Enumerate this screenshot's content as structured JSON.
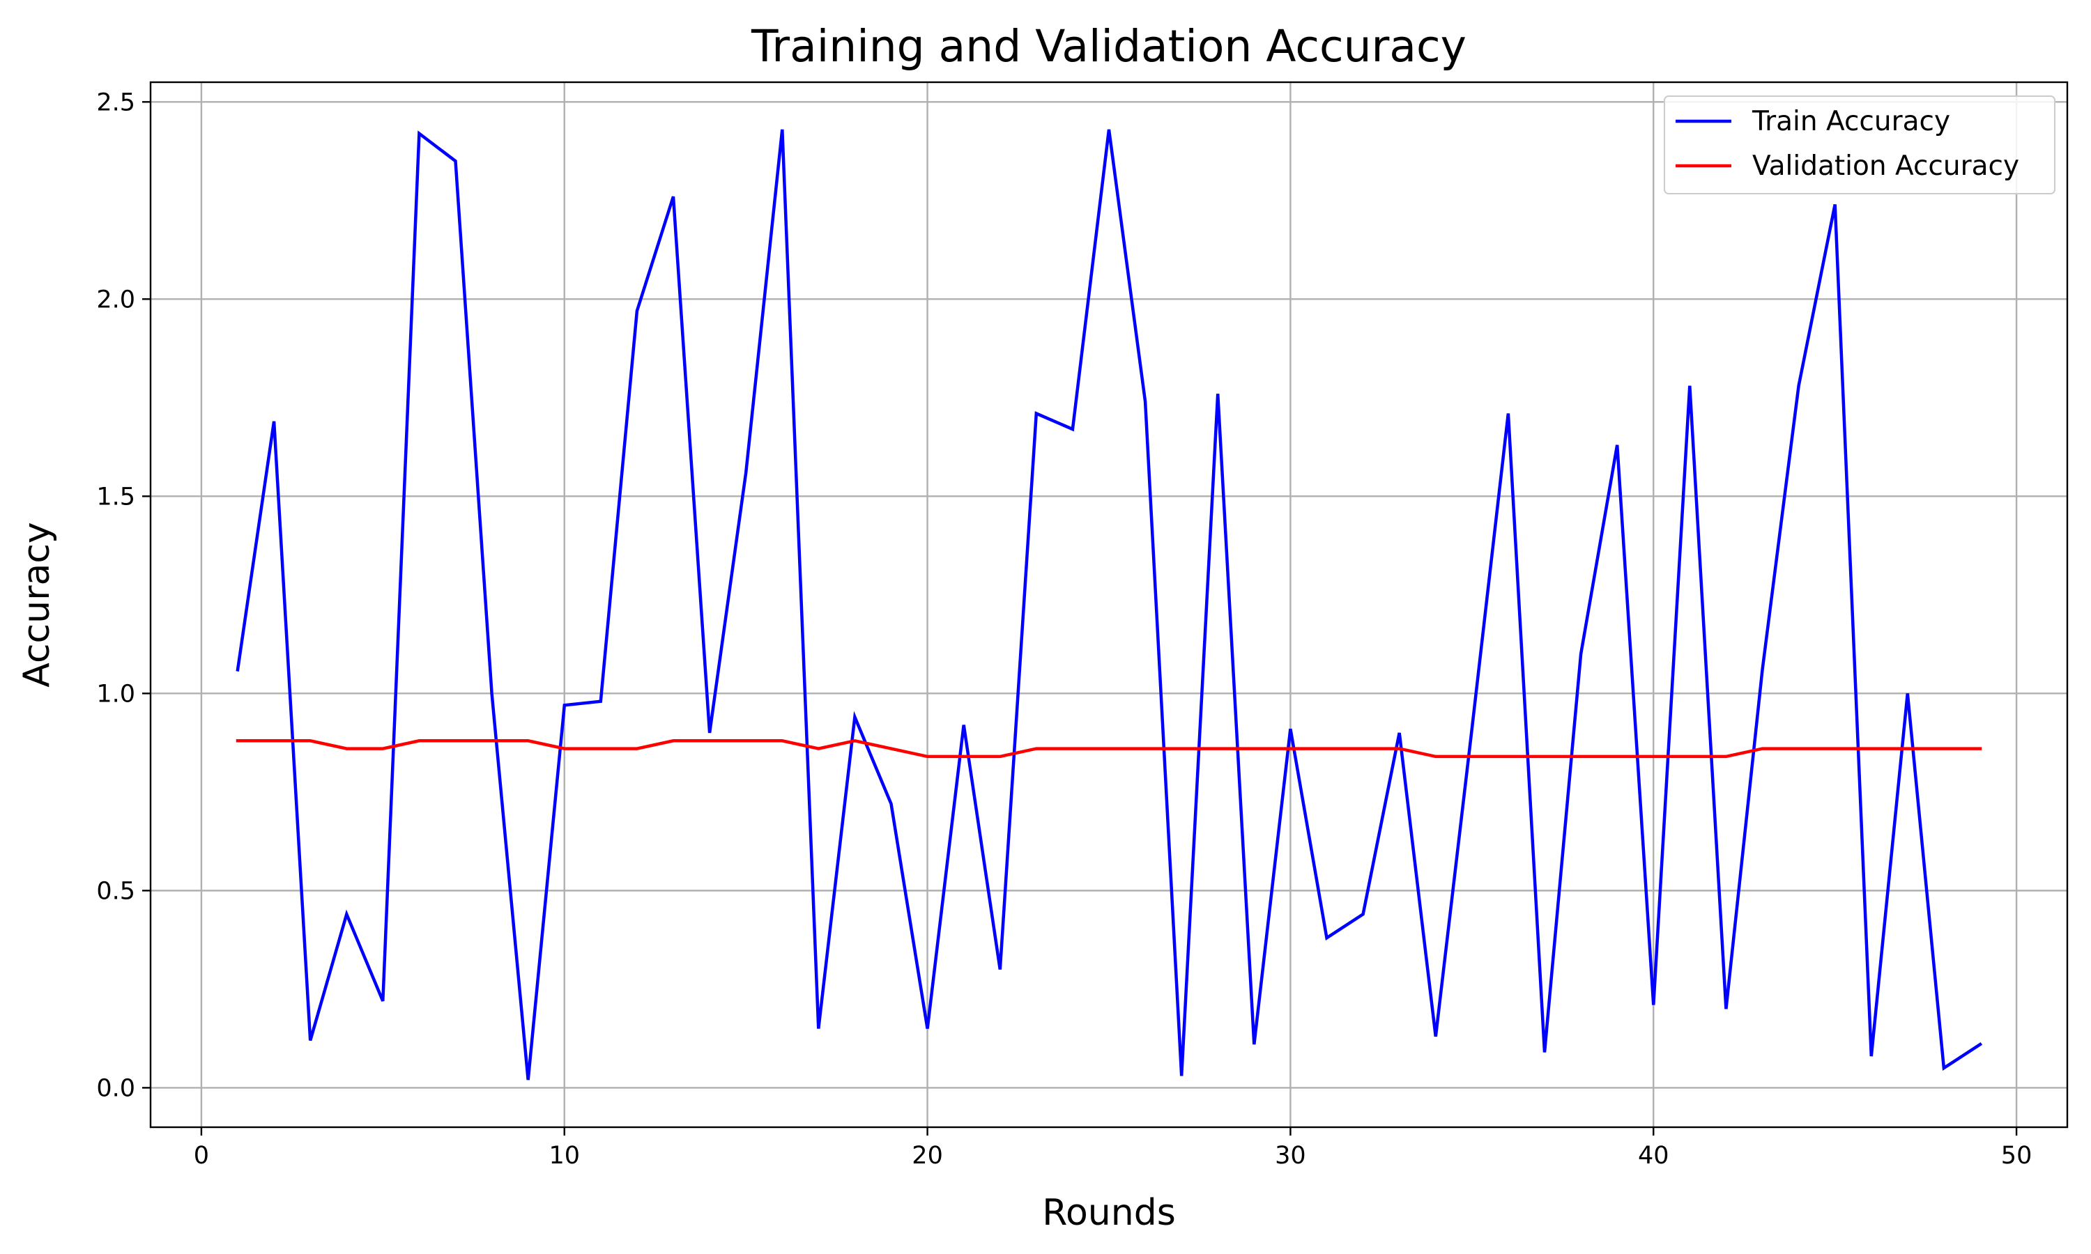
{
  "chart_data": {
    "type": "line",
    "title": "Training and Validation Accuracy",
    "xlabel": "Rounds",
    "ylabel": "Accuracy",
    "xlim": [
      -1.4,
      51.4
    ],
    "ylim": [
      -0.1,
      2.55
    ],
    "x_ticks": [
      0,
      10,
      20,
      30,
      40,
      50
    ],
    "y_ticks": [
      0.0,
      0.5,
      1.0,
      1.5,
      2.0,
      2.5
    ],
    "x_tick_labels": [
      "0",
      "10",
      "20",
      "30",
      "40",
      "50"
    ],
    "y_tick_labels": [
      "0.0",
      "0.5",
      "1.0",
      "1.5",
      "2.0",
      "2.5"
    ],
    "grid": true,
    "legend_position": "top-right",
    "x": [
      1,
      2,
      3,
      4,
      5,
      6,
      7,
      8,
      9,
      10,
      11,
      12,
      13,
      14,
      15,
      16,
      17,
      18,
      19,
      20,
      21,
      22,
      23,
      24,
      25,
      26,
      27,
      28,
      29,
      30,
      31,
      32,
      33,
      34,
      35,
      36,
      37,
      38,
      39,
      40,
      41,
      42,
      43,
      44,
      45,
      46,
      47,
      48,
      49
    ],
    "series": [
      {
        "name": "Train Accuracy",
        "color": "#0000ff",
        "values": [
          1.06,
          1.69,
          0.12,
          0.44,
          0.22,
          2.42,
          2.35,
          1.0,
          0.02,
          0.97,
          0.98,
          1.97,
          2.26,
          0.9,
          1.56,
          2.43,
          0.15,
          0.94,
          0.72,
          0.15,
          0.92,
          0.3,
          1.71,
          1.67,
          2.43,
          1.74,
          0.03,
          1.76,
          0.11,
          0.91,
          0.38,
          0.44,
          0.9,
          0.13,
          0.91,
          1.71,
          0.09,
          1.1,
          1.63,
          0.21,
          1.78,
          0.2,
          1.06,
          1.78,
          2.24,
          0.08,
          1.0,
          0.05,
          0.11
        ]
      },
      {
        "name": "Validation Accuracy",
        "color": "#ff0000",
        "values": [
          0.88,
          0.88,
          0.88,
          0.86,
          0.86,
          0.88,
          0.88,
          0.88,
          0.88,
          0.86,
          0.86,
          0.86,
          0.88,
          0.88,
          0.88,
          0.88,
          0.86,
          0.88,
          0.86,
          0.84,
          0.84,
          0.84,
          0.86,
          0.86,
          0.86,
          0.86,
          0.86,
          0.86,
          0.86,
          0.86,
          0.86,
          0.86,
          0.86,
          0.84,
          0.84,
          0.84,
          0.84,
          0.84,
          0.84,
          0.84,
          0.84,
          0.84,
          0.86,
          0.86,
          0.86,
          0.86,
          0.86,
          0.86,
          0.86
        ]
      }
    ]
  }
}
